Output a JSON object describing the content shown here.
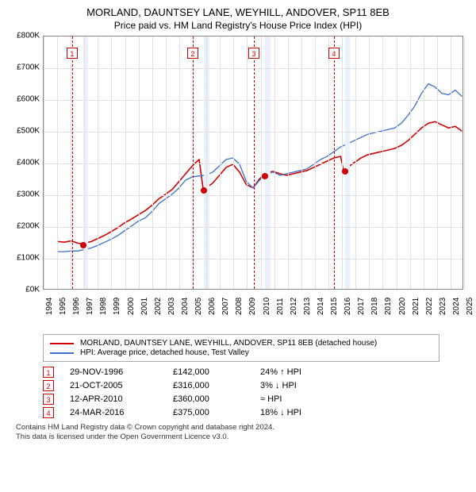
{
  "title": "MORLAND, DAUNTSEY LANE, WEYHILL, ANDOVER, SP11 8EB",
  "subtitle": "Price paid vs. HM Land Registry's House Price Index (HPI)",
  "chart": {
    "type": "line",
    "background_color": "#ffffff",
    "grid_color": "#e0e0e0",
    "border_color": "#888888",
    "y": {
      "min": 0,
      "max": 800000,
      "step": 100000,
      "labels": [
        "£0K",
        "£100K",
        "£200K",
        "£300K",
        "£400K",
        "£500K",
        "£600K",
        "£700K",
        "£800K"
      ],
      "label_fontsize": 10
    },
    "x": {
      "min": 1994,
      "max": 2025,
      "ticks": [
        1994,
        1995,
        1996,
        1997,
        1998,
        1999,
        2000,
        2001,
        2002,
        2003,
        2004,
        2005,
        2006,
        2007,
        2008,
        2009,
        2010,
        2011,
        2012,
        2013,
        2014,
        2015,
        2016,
        2017,
        2018,
        2019,
        2020,
        2021,
        2022,
        2023,
        2024,
        2025
      ],
      "label_fontsize": 10
    },
    "shaded_bands": [
      {
        "from": 1996.9,
        "to": 1997.3,
        "color": "#eaf1fb"
      },
      {
        "from": 2005.8,
        "to": 2006.2,
        "color": "#eaf1fb"
      },
      {
        "from": 2010.3,
        "to": 2010.7,
        "color": "#eaf1fb"
      },
      {
        "from": 2016.2,
        "to": 2016.6,
        "color": "#eaf1fb"
      }
    ],
    "vlines": [
      {
        "x": 1996.1,
        "color": "#d00000",
        "flag": "1"
      },
      {
        "x": 2005.0,
        "color": "#d00000",
        "flag": "2"
      },
      {
        "x": 2009.5,
        "color": "#d00000",
        "flag": "3"
      },
      {
        "x": 2015.4,
        "color": "#d00000",
        "flag": "4"
      }
    ],
    "markers": [
      {
        "x": 1996.9,
        "y": 142000,
        "color": "#d00000"
      },
      {
        "x": 2005.8,
        "y": 316000,
        "color": "#d00000"
      },
      {
        "x": 2010.3,
        "y": 360000,
        "color": "#d00000"
      },
      {
        "x": 2016.2,
        "y": 375000,
        "color": "#d00000"
      }
    ],
    "series": [
      {
        "name": "property",
        "color": "#d00000",
        "line_width": 1.6,
        "points": [
          [
            1995.0,
            150000
          ],
          [
            1995.5,
            148000
          ],
          [
            1996.0,
            152000
          ],
          [
            1996.5,
            145000
          ],
          [
            1996.9,
            142000
          ],
          [
            1997.0,
            145000
          ],
          [
            1997.5,
            150000
          ],
          [
            1998.0,
            160000
          ],
          [
            1998.5,
            170000
          ],
          [
            1999.0,
            182000
          ],
          [
            1999.5,
            195000
          ],
          [
            2000.0,
            210000
          ],
          [
            2000.5,
            222000
          ],
          [
            2001.0,
            235000
          ],
          [
            2001.5,
            248000
          ],
          [
            2002.0,
            265000
          ],
          [
            2002.5,
            285000
          ],
          [
            2003.0,
            300000
          ],
          [
            2003.5,
            315000
          ],
          [
            2004.0,
            340000
          ],
          [
            2004.5,
            365000
          ],
          [
            2005.0,
            390000
          ],
          [
            2005.5,
            410000
          ],
          [
            2005.8,
            316000
          ],
          [
            2006.0,
            320000
          ],
          [
            2006.5,
            335000
          ],
          [
            2007.0,
            360000
          ],
          [
            2007.5,
            385000
          ],
          [
            2008.0,
            395000
          ],
          [
            2008.5,
            370000
          ],
          [
            2009.0,
            330000
          ],
          [
            2009.5,
            320000
          ],
          [
            2010.0,
            350000
          ],
          [
            2010.3,
            360000
          ],
          [
            2010.5,
            370000
          ],
          [
            2011.0,
            372000
          ],
          [
            2011.5,
            365000
          ],
          [
            2012.0,
            360000
          ],
          [
            2012.5,
            365000
          ],
          [
            2013.0,
            370000
          ],
          [
            2013.5,
            375000
          ],
          [
            2014.0,
            385000
          ],
          [
            2014.5,
            395000
          ],
          [
            2015.0,
            405000
          ],
          [
            2015.5,
            415000
          ],
          [
            2016.0,
            420000
          ],
          [
            2016.2,
            375000
          ],
          [
            2016.5,
            385000
          ],
          [
            2017.0,
            400000
          ],
          [
            2017.5,
            415000
          ],
          [
            2018.0,
            425000
          ],
          [
            2018.5,
            430000
          ],
          [
            2019.0,
            435000
          ],
          [
            2019.5,
            440000
          ],
          [
            2020.0,
            445000
          ],
          [
            2020.5,
            455000
          ],
          [
            2021.0,
            470000
          ],
          [
            2021.5,
            490000
          ],
          [
            2022.0,
            510000
          ],
          [
            2022.5,
            525000
          ],
          [
            2023.0,
            530000
          ],
          [
            2023.5,
            520000
          ],
          [
            2024.0,
            510000
          ],
          [
            2024.5,
            515000
          ],
          [
            2025.0,
            500000
          ]
        ]
      },
      {
        "name": "hpi",
        "color": "#3b6fc9",
        "line_width": 1.3,
        "points": [
          [
            1995.0,
            118000
          ],
          [
            1995.5,
            118000
          ],
          [
            1996.0,
            120000
          ],
          [
            1996.5,
            120000
          ],
          [
            1997.0,
            125000
          ],
          [
            1997.5,
            130000
          ],
          [
            1998.0,
            138000
          ],
          [
            1998.5,
            148000
          ],
          [
            1999.0,
            158000
          ],
          [
            1999.5,
            170000
          ],
          [
            2000.0,
            185000
          ],
          [
            2000.5,
            200000
          ],
          [
            2001.0,
            215000
          ],
          [
            2001.5,
            225000
          ],
          [
            2002.0,
            245000
          ],
          [
            2002.5,
            270000
          ],
          [
            2003.0,
            285000
          ],
          [
            2003.5,
            300000
          ],
          [
            2004.0,
            320000
          ],
          [
            2004.5,
            345000
          ],
          [
            2005.0,
            355000
          ],
          [
            2005.5,
            358000
          ],
          [
            2006.0,
            360000
          ],
          [
            2006.5,
            370000
          ],
          [
            2007.0,
            390000
          ],
          [
            2007.5,
            410000
          ],
          [
            2008.0,
            415000
          ],
          [
            2008.5,
            395000
          ],
          [
            2009.0,
            340000
          ],
          [
            2009.5,
            320000
          ],
          [
            2010.0,
            345000
          ],
          [
            2010.5,
            365000
          ],
          [
            2011.0,
            370000
          ],
          [
            2011.5,
            360000
          ],
          [
            2012.0,
            365000
          ],
          [
            2012.5,
            370000
          ],
          [
            2013.0,
            375000
          ],
          [
            2013.5,
            380000
          ],
          [
            2014.0,
            395000
          ],
          [
            2014.5,
            410000
          ],
          [
            2015.0,
            420000
          ],
          [
            2015.5,
            435000
          ],
          [
            2016.0,
            450000
          ],
          [
            2016.5,
            460000
          ],
          [
            2017.0,
            470000
          ],
          [
            2017.5,
            480000
          ],
          [
            2018.0,
            490000
          ],
          [
            2018.5,
            495000
          ],
          [
            2019.0,
            500000
          ],
          [
            2019.5,
            505000
          ],
          [
            2020.0,
            510000
          ],
          [
            2020.5,
            525000
          ],
          [
            2021.0,
            550000
          ],
          [
            2021.5,
            580000
          ],
          [
            2022.0,
            620000
          ],
          [
            2022.5,
            650000
          ],
          [
            2023.0,
            640000
          ],
          [
            2023.5,
            620000
          ],
          [
            2024.0,
            615000
          ],
          [
            2024.5,
            630000
          ],
          [
            2025.0,
            610000
          ]
        ]
      }
    ]
  },
  "legend": {
    "items": [
      {
        "color": "#d00000",
        "label": "MORLAND, DAUNTSEY LANE, WEYHILL, ANDOVER, SP11 8EB (detached house)"
      },
      {
        "color": "#3b6fc9",
        "label": "HPI: Average price, detached house, Test Valley"
      }
    ]
  },
  "transactions": [
    {
      "num": "1",
      "color": "#d00000",
      "date": "29-NOV-1996",
      "price": "£142,000",
      "hpi": "24% ↑ HPI"
    },
    {
      "num": "2",
      "color": "#d00000",
      "date": "21-OCT-2005",
      "price": "£316,000",
      "hpi": "3% ↓ HPI"
    },
    {
      "num": "3",
      "color": "#d00000",
      "date": "12-APR-2010",
      "price": "£360,000",
      "hpi": "≈ HPI"
    },
    {
      "num": "4",
      "color": "#d00000",
      "date": "24-MAR-2016",
      "price": "£375,000",
      "hpi": "18% ↓ HPI"
    }
  ],
  "footnote": {
    "line1": "Contains HM Land Registry data © Crown copyright and database right 2024.",
    "line2": "This data is licensed under the Open Government Licence v3.0."
  }
}
